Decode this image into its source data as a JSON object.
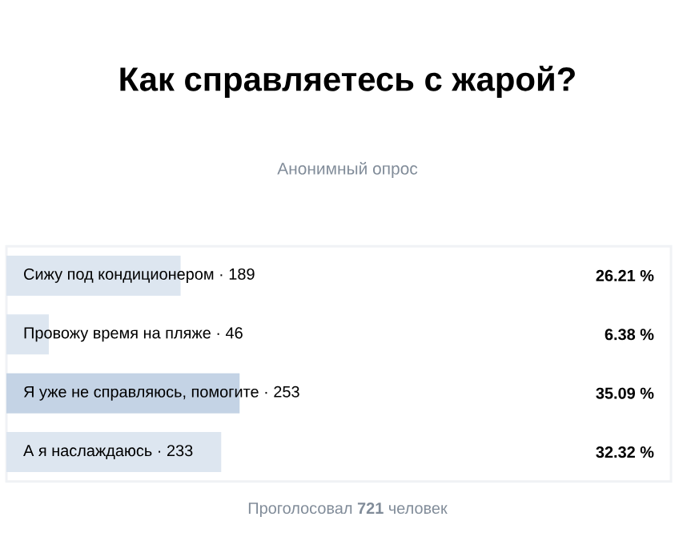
{
  "chart_data": {
    "type": "bar",
    "orientation": "horizontal",
    "title": "Как справляетесь с жарой?",
    "subtitle": "Анонимный опрос",
    "categories": [
      "Сижу под кондиционером · 189",
      "Провожу время на пляже · 46",
      "Я уже не справляюсь, помогите · 253",
      "А я наслаждаюсь · 233"
    ],
    "values": [
      26.21,
      6.38,
      35.09,
      32.32
    ],
    "value_labels": [
      "26.21 %",
      "6.38 %",
      "35.09 %",
      "32.32 %"
    ],
    "colors": [
      "#dde6f0",
      "#dde6f0",
      "#c4d3e5",
      "#dde6f0"
    ],
    "xlim": [
      0,
      100
    ],
    "annotations": [
      "Проголосовал **721** человек"
    ]
  }
}
